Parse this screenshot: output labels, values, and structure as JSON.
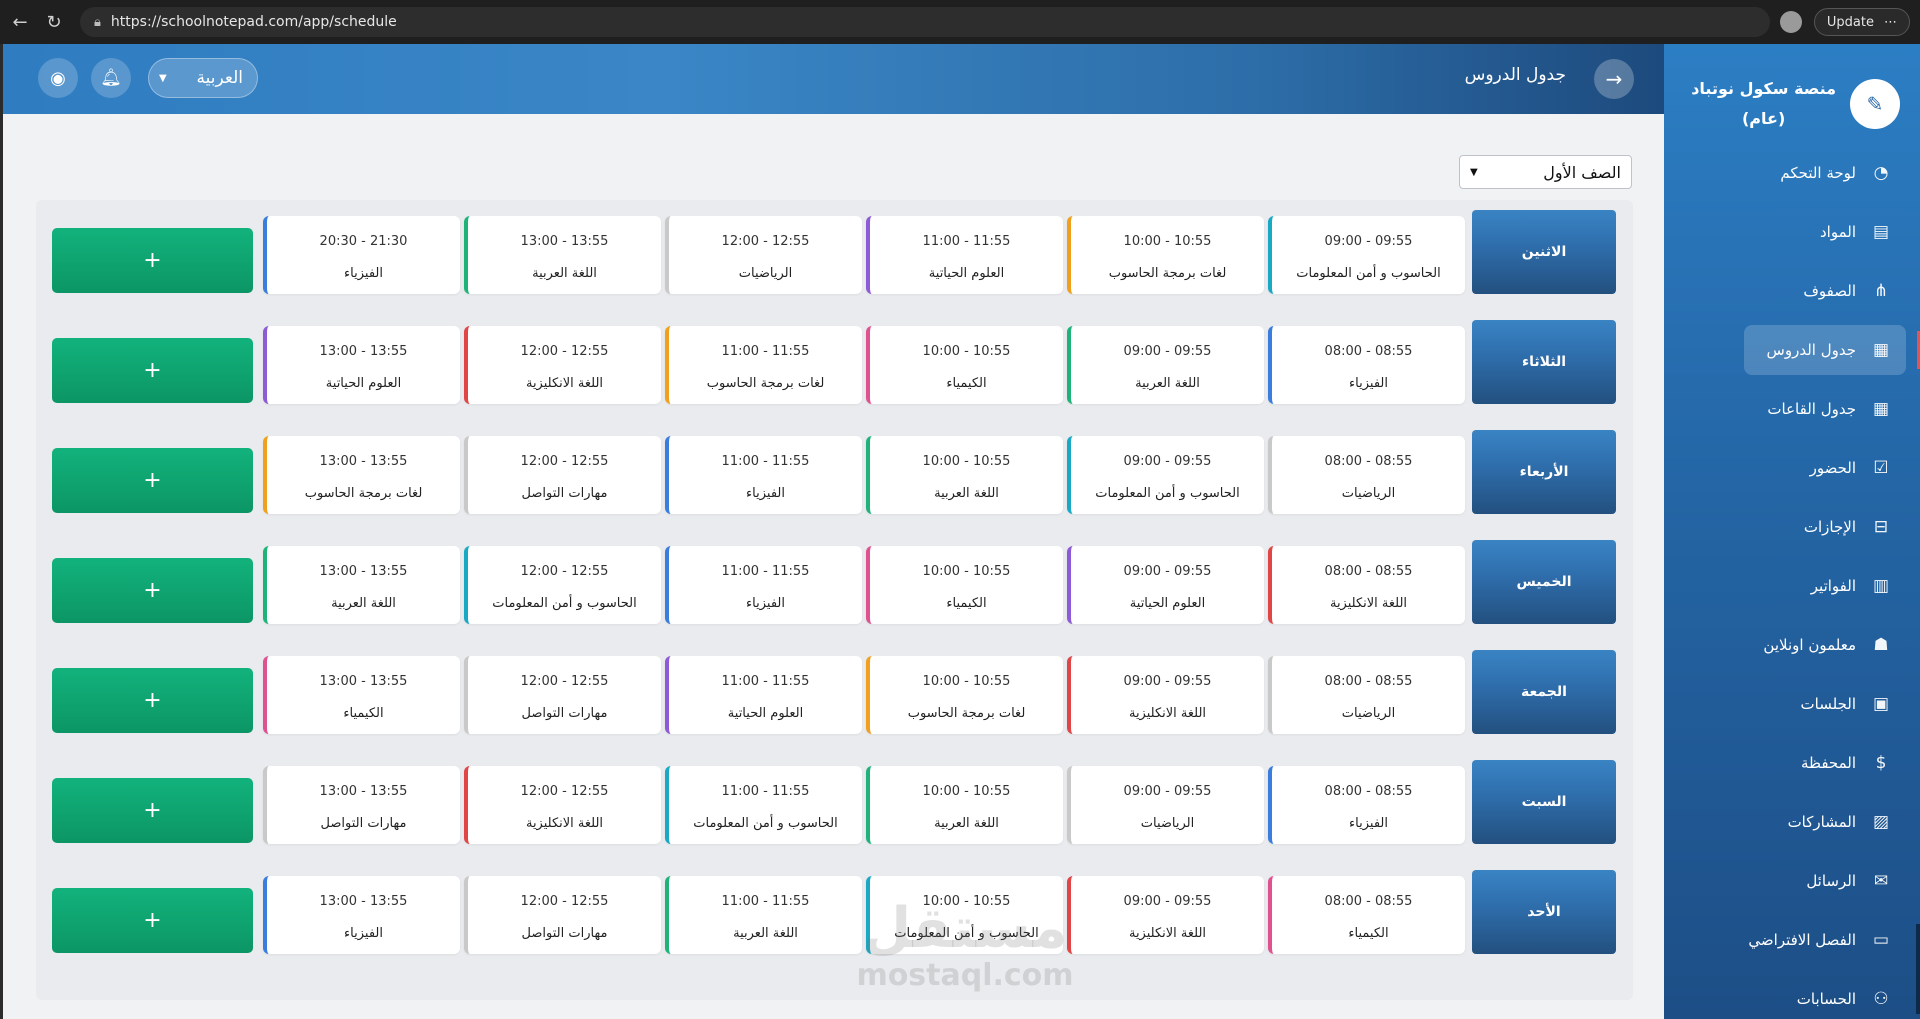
{
  "browser": {
    "url": "https://schoolnotepad.com/app/schedule",
    "update_label": "Update"
  },
  "sidebar": {
    "brand_line1": "منصة سكول نوتباد",
    "brand_line2": "(عام)",
    "items": [
      {
        "label": "لوحة التحكم",
        "icon": "dashboard-icon",
        "glyph": "◔"
      },
      {
        "label": "المواد",
        "icon": "book-icon",
        "glyph": "▤"
      },
      {
        "label": "الصفوف",
        "icon": "hierarchy-icon",
        "glyph": "⋔"
      },
      {
        "label": "جدول الدروس",
        "icon": "calendar-icon",
        "glyph": "▦",
        "active": true
      },
      {
        "label": "جدول القاعات",
        "icon": "calendar-grid-icon",
        "glyph": "▦"
      },
      {
        "label": "الحضور",
        "icon": "calendar-check-icon",
        "glyph": "☑"
      },
      {
        "label": "الإجازات",
        "icon": "calendar-minus-icon",
        "glyph": "⊟"
      },
      {
        "label": "الفواتير",
        "icon": "invoice-icon",
        "glyph": "▥"
      },
      {
        "label": "معلمون اونلاين",
        "icon": "teacher-icon",
        "glyph": "☗"
      },
      {
        "label": "الجلسات",
        "icon": "session-icon",
        "glyph": "▣"
      },
      {
        "label": "المحفظة",
        "icon": "dollar-icon",
        "glyph": "$"
      },
      {
        "label": "المشاركات",
        "icon": "posts-icon",
        "glyph": "▨"
      },
      {
        "label": "الرسائل",
        "icon": "mail-icon",
        "glyph": "✉"
      },
      {
        "label": "الفصل الافتراضي",
        "icon": "video-icon",
        "glyph": "▭"
      },
      {
        "label": "الحسابات",
        "icon": "users-icon",
        "glyph": "⚇"
      }
    ]
  },
  "header": {
    "title": "جدول الدروس",
    "language": "العربية"
  },
  "class_select": {
    "value": "الصف الأول"
  },
  "colors": {
    "blue": "#3b7ddd",
    "orange": "#f0a01c",
    "purple": "#8e5bd6",
    "gray": "#c9c9c9",
    "green": "#1fb37a",
    "teal": "#1aa8c4",
    "red": "#e04646",
    "pink": "#e0528f"
  },
  "schedule": [
    {
      "day": "الاثنين",
      "slots": [
        {
          "time": "09:00 - 09:55",
          "subject": "الحاسوب و أمن المعلومات",
          "color": "teal"
        },
        {
          "time": "10:00 - 10:55",
          "subject": "لغات برمجة الحاسوب",
          "color": "orange"
        },
        {
          "time": "11:00 - 11:55",
          "subject": "العلوم الحياتية",
          "color": "purple"
        },
        {
          "time": "12:00 - 12:55",
          "subject": "الرياضيات",
          "color": "gray"
        },
        {
          "time": "13:00 - 13:55",
          "subject": "اللغة العربية",
          "color": "green"
        },
        {
          "time": "20:30 - 21:30",
          "subject": "الفيزياء",
          "color": "blue"
        }
      ]
    },
    {
      "day": "الثلاثاء",
      "slots": [
        {
          "time": "08:00 - 08:55",
          "subject": "الفيزياء",
          "color": "blue"
        },
        {
          "time": "09:00 - 09:55",
          "subject": "اللغة العربية",
          "color": "green"
        },
        {
          "time": "10:00 - 10:55",
          "subject": "الكيمياء",
          "color": "pink"
        },
        {
          "time": "11:00 - 11:55",
          "subject": "لغات برمجة الحاسوب",
          "color": "orange"
        },
        {
          "time": "12:00 - 12:55",
          "subject": "اللغة الانكليزية",
          "color": "red"
        },
        {
          "time": "13:00 - 13:55",
          "subject": "العلوم الحياتية",
          "color": "purple"
        }
      ]
    },
    {
      "day": "الأربعاء",
      "slots": [
        {
          "time": "08:00 - 08:55",
          "subject": "الرياضيات",
          "color": "gray"
        },
        {
          "time": "09:00 - 09:55",
          "subject": "الحاسوب و أمن المعلومات",
          "color": "teal"
        },
        {
          "time": "10:00 - 10:55",
          "subject": "اللغة العربية",
          "color": "green"
        },
        {
          "time": "11:00 - 11:55",
          "subject": "الفيزياء",
          "color": "blue"
        },
        {
          "time": "12:00 - 12:55",
          "subject": "مهارات التواصل",
          "color": "gray"
        },
        {
          "time": "13:00 - 13:55",
          "subject": "لغات برمجة الحاسوب",
          "color": "orange"
        }
      ]
    },
    {
      "day": "الخميس",
      "slots": [
        {
          "time": "08:00 - 08:55",
          "subject": "اللغة الانكليزية",
          "color": "red"
        },
        {
          "time": "09:00 - 09:55",
          "subject": "العلوم الحياتية",
          "color": "purple"
        },
        {
          "time": "10:00 - 10:55",
          "subject": "الكيمياء",
          "color": "pink"
        },
        {
          "time": "11:00 - 11:55",
          "subject": "الفيزياء",
          "color": "blue"
        },
        {
          "time": "12:00 - 12:55",
          "subject": "الحاسوب و أمن المعلومات",
          "color": "teal"
        },
        {
          "time": "13:00 - 13:55",
          "subject": "اللغة العربية",
          "color": "green"
        }
      ]
    },
    {
      "day": "الجمعة",
      "slots": [
        {
          "time": "08:00 - 08:55",
          "subject": "الرياضيات",
          "color": "gray"
        },
        {
          "time": "09:00 - 09:55",
          "subject": "اللغة الانكليزية",
          "color": "red"
        },
        {
          "time": "10:00 - 10:55",
          "subject": "لغات برمجة الحاسوب",
          "color": "orange"
        },
        {
          "time": "11:00 - 11:55",
          "subject": "العلوم الحياتية",
          "color": "purple"
        },
        {
          "time": "12:00 - 12:55",
          "subject": "مهارات التواصل",
          "color": "gray"
        },
        {
          "time": "13:00 - 13:55",
          "subject": "الكيمياء",
          "color": "pink"
        }
      ]
    },
    {
      "day": "السبت",
      "slots": [
        {
          "time": "08:00 - 08:55",
          "subject": "الفيزياء",
          "color": "blue"
        },
        {
          "time": "09:00 - 09:55",
          "subject": "الرياضيات",
          "color": "gray"
        },
        {
          "time": "10:00 - 10:55",
          "subject": "اللغة العربية",
          "color": "green"
        },
        {
          "time": "11:00 - 11:55",
          "subject": "الحاسوب و أمن المعلومات",
          "color": "teal"
        },
        {
          "time": "12:00 - 12:55",
          "subject": "اللغة الانكليزية",
          "color": "red"
        },
        {
          "time": "13:00 - 13:55",
          "subject": "مهارات التواصل",
          "color": "gray"
        }
      ]
    },
    {
      "day": "الأحد",
      "slots": [
        {
          "time": "08:00 - 08:55",
          "subject": "الكيمياء",
          "color": "pink"
        },
        {
          "time": "09:00 - 09:55",
          "subject": "اللغة الانكليزية",
          "color": "red"
        },
        {
          "time": "10:00 - 10:55",
          "subject": "الحاسوب و أمن المعلومات",
          "color": "teal"
        },
        {
          "time": "11:00 - 11:55",
          "subject": "اللغة العربية",
          "color": "green"
        },
        {
          "time": "12:00 - 12:55",
          "subject": "مهارات التواصل",
          "color": "gray"
        },
        {
          "time": "13:00 - 13:55",
          "subject": "الفيزياء",
          "color": "blue"
        }
      ]
    }
  ],
  "add_label": "+",
  "watermark": {
    "ar": "مستقل",
    "en": "mostaql.com"
  }
}
